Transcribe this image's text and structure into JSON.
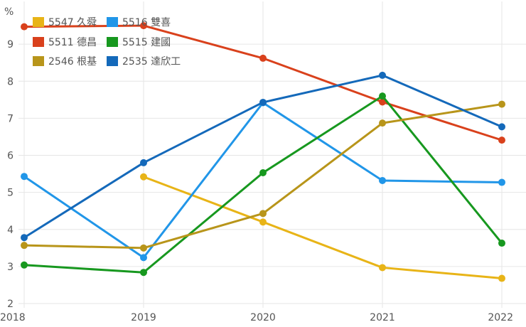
{
  "chart_data": {
    "type": "line",
    "unit_label": "%",
    "x": [
      "2018",
      "2019",
      "2020",
      "2021",
      "2022"
    ],
    "ylim": [
      2,
      10
    ],
    "yticks": [
      "2",
      "3",
      "4",
      "5",
      "6",
      "7",
      "8",
      "9"
    ],
    "grid": true,
    "legend_position": "top-left",
    "series": [
      {
        "name": "5547 久舜",
        "color": "#e8b417",
        "values": [
          null,
          5.42,
          4.2,
          2.97,
          2.68
        ]
      },
      {
        "name": "5516 雙喜",
        "color": "#2196e8",
        "values": [
          5.43,
          3.24,
          7.42,
          5.32,
          5.27
        ]
      },
      {
        "name": "5511 德昌",
        "color": "#d9411c",
        "values": [
          9.47,
          9.5,
          8.62,
          7.44,
          6.41
        ]
      },
      {
        "name": "5515 建國",
        "color": "#17981f",
        "values": [
          3.04,
          2.84,
          5.53,
          7.6,
          3.63
        ]
      },
      {
        "name": "2546 根基",
        "color": "#b8951a",
        "values": [
          3.57,
          3.5,
          4.43,
          6.87,
          7.38
        ]
      },
      {
        "name": "2535 達欣工",
        "color": "#1469ba",
        "values": [
          3.78,
          5.8,
          7.43,
          8.16,
          6.77
        ]
      }
    ]
  }
}
